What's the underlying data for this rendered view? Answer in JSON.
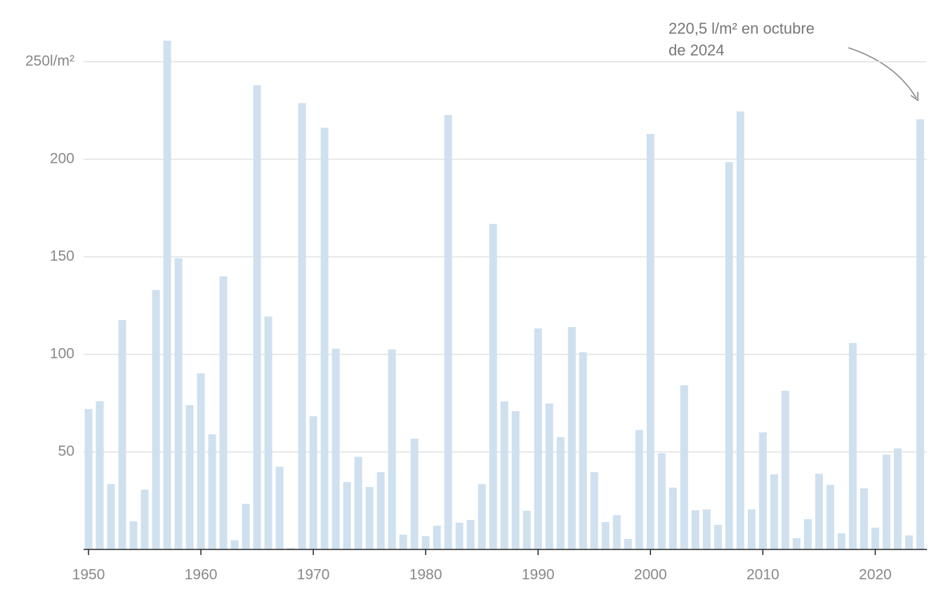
{
  "chart_data": {
    "type": "bar",
    "annotation": {
      "lines": [
        "220,5 l/m² en octubre",
        "de 2024"
      ]
    },
    "x": [
      1950,
      1951,
      1952,
      1953,
      1954,
      1955,
      1956,
      1957,
      1958,
      1959,
      1960,
      1961,
      1962,
      1963,
      1964,
      1965,
      1966,
      1967,
      1968,
      1969,
      1970,
      1971,
      1972,
      1973,
      1974,
      1975,
      1976,
      1977,
      1978,
      1979,
      1980,
      1981,
      1982,
      1983,
      1984,
      1985,
      1986,
      1987,
      1988,
      1989,
      1990,
      1991,
      1992,
      1993,
      1994,
      1995,
      1996,
      1997,
      1998,
      1999,
      2000,
      2001,
      2002,
      2003,
      2004,
      2005,
      2006,
      2007,
      2008,
      2009,
      2010,
      2011,
      2012,
      2013,
      2014,
      2015,
      2016,
      2017,
      2018,
      2019,
      2020,
      2021,
      2022,
      2023,
      2024
    ],
    "values": [
      72,
      76,
      33.5,
      117.6,
      14.4,
      30.6,
      133,
      260.8,
      149.3,
      74,
      90.3,
      59,
      140,
      4.7,
      23.4,
      238,
      119.4,
      42.4,
      0.7,
      228.8,
      68.3,
      216.2,
      102.9,
      34.5,
      47.5,
      32,
      39.6,
      102.5,
      7.6,
      56.8,
      6.8,
      12.2,
      222.7,
      13.7,
      15.1,
      33.5,
      166.9,
      75.9,
      70.9,
      19.8,
      113.3,
      74.8,
      57.6,
      114,
      101.1,
      39.6,
      14,
      17.6,
      5.4,
      61.2,
      213,
      49.3,
      31.7,
      84.2,
      20.1,
      20.5,
      12.6,
      198.6,
      224.5,
      20.5,
      60,
      38.5,
      81.3,
      5.8,
      15.5,
      38.8,
      33.1,
      8.3,
      105.8,
      31.3,
      11.2,
      48.6,
      51.8,
      7.2,
      220.5
    ],
    "color": "#cfe0ef",
    "xlim": [
      1949.56,
      2024.6
    ],
    "xticks": [
      1950,
      1960,
      1970,
      1980,
      1990,
      2000,
      2010,
      2020
    ],
    "ylim": [
      0,
      270
    ],
    "yticks": [
      50,
      100,
      150,
      200,
      {
        "value": 250,
        "label": "250l/m²"
      }
    ],
    "grid": true
  }
}
